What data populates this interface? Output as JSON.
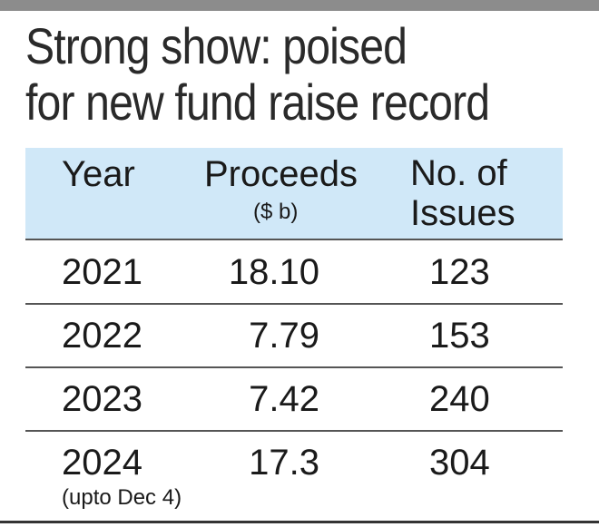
{
  "chart_data": {
    "type": "table",
    "title_line1": "Strong show: poised",
    "title_line2": "for new fund raise record",
    "columns": {
      "year": "Year",
      "proceeds": "Proceeds",
      "proceeds_unit": "($ b)",
      "issues_line1": "No. of",
      "issues_line2": "Issues"
    },
    "rows": [
      {
        "year": "2021",
        "proceeds": "18.10",
        "issues": "123",
        "note": ""
      },
      {
        "year": "2022",
        "proceeds": "7.79",
        "issues": "153",
        "note": ""
      },
      {
        "year": "2023",
        "proceeds": "7.42",
        "issues": "240",
        "note": ""
      },
      {
        "year": "2024",
        "proceeds": "17.3",
        "issues": "304",
        "note": "(upto Dec 4)"
      }
    ]
  },
  "colors": {
    "header_bg": "#d0e8f8",
    "top_bar": "#8c8c8c",
    "rule": "#555555"
  }
}
